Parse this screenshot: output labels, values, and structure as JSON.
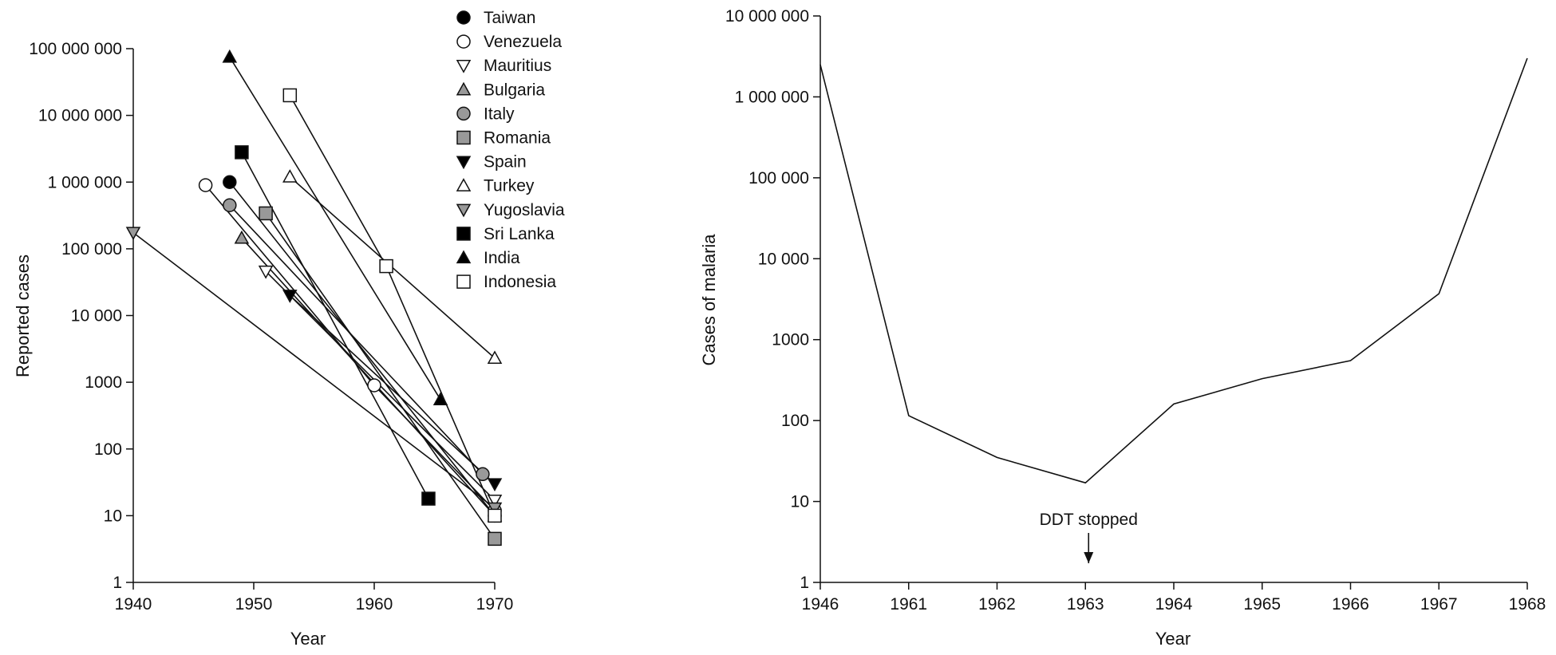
{
  "chart_data": [
    {
      "type": "line",
      "title": "",
      "xlabel": "Year",
      "ylabel": "Reported cases",
      "yscale": "log",
      "xlim": [
        1940,
        1970
      ],
      "ylim": [
        1,
        100000000
      ],
      "xticks": [
        1940,
        1950,
        1960,
        1970
      ],
      "xtick_labels": [
        "1940",
        "1950",
        "1960",
        "1970"
      ],
      "yticks": [
        1,
        10,
        100,
        1000,
        10000,
        100000,
        1000000,
        10000000,
        100000000
      ],
      "ytick_labels": [
        "1",
        "10",
        "100",
        "1000",
        "10 000",
        "100 000",
        "1 000 000",
        "10 000 000",
        "100 000 000"
      ],
      "legend_position": "top-right",
      "series": [
        {
          "name": "Taiwan",
          "marker": "circle",
          "fill": "#000000",
          "x": [
            1948,
            1970
          ],
          "y": [
            1000000,
            10
          ]
        },
        {
          "name": "Venezuela",
          "marker": "circle",
          "fill": "#ffffff",
          "x": [
            1946,
            1960,
            1970
          ],
          "y": [
            900000,
            900,
            12
          ]
        },
        {
          "name": "Mauritius",
          "marker": "triangle-down",
          "fill": "#ffffff",
          "x": [
            1951,
            1970
          ],
          "y": [
            46000,
            17
          ]
        },
        {
          "name": "Bulgaria",
          "marker": "triangle-up",
          "fill": "#999999",
          "x": [
            1949,
            1970
          ],
          "y": [
            145000,
            10
          ]
        },
        {
          "name": "Italy",
          "marker": "circle",
          "fill": "#999999",
          "x": [
            1948,
            1969
          ],
          "y": [
            450000,
            42
          ]
        },
        {
          "name": "Romania",
          "marker": "square",
          "fill": "#999999",
          "x": [
            1951,
            1970
          ],
          "y": [
            340000,
            4.5
          ]
        },
        {
          "name": "Spain",
          "marker": "triangle-down",
          "fill": "#000000",
          "x": [
            1953,
            1970
          ],
          "y": [
            20000,
            30
          ]
        },
        {
          "name": "Turkey",
          "marker": "triangle-up",
          "fill": "#ffffff",
          "x": [
            1953,
            1970
          ],
          "y": [
            1200000,
            2300
          ]
        },
        {
          "name": "Yugoslavia",
          "marker": "triangle-down",
          "fill": "#999999",
          "x": [
            1940,
            1970
          ],
          "y": [
            175000,
            13
          ]
        },
        {
          "name": "Sri Lanka",
          "marker": "square",
          "fill": "#000000",
          "x": [
            1949,
            1964.5
          ],
          "y": [
            2800000,
            18
          ]
        },
        {
          "name": "India",
          "marker": "triangle-up",
          "fill": "#000000",
          "x": [
            1948,
            1965.5
          ],
          "y": [
            75000000,
            550
          ]
        },
        {
          "name": "Indonesia",
          "marker": "square",
          "fill": "#ffffff",
          "x": [
            1953,
            1961,
            1970
          ],
          "y": [
            20000000,
            55000,
            10
          ]
        }
      ]
    },
    {
      "type": "line",
      "title": "",
      "xlabel": "Year",
      "ylabel": "Cases of malaria",
      "yscale": "log",
      "categories": [
        "1946",
        "1961",
        "1962",
        "1963",
        "1964",
        "1965",
        "1966",
        "1967",
        "1968"
      ],
      "values": [
        2500000,
        115,
        35,
        17,
        160,
        330,
        550,
        3700,
        3000000
      ],
      "ylim": [
        1,
        10000000
      ],
      "yticks": [
        1,
        10,
        100,
        1000,
        10000,
        100000,
        1000000,
        10000000
      ],
      "ytick_labels": [
        "1",
        "10",
        "100",
        "1000",
        "10 000",
        "100 000",
        "1 000 000",
        "10 000 000"
      ],
      "annotation": {
        "text": "DDT stopped",
        "x": "1963"
      }
    }
  ]
}
